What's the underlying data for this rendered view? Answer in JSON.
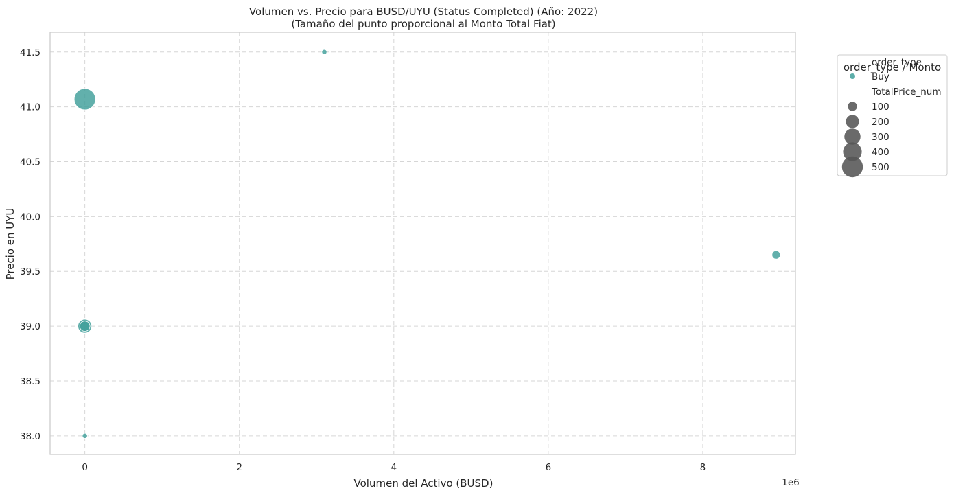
{
  "chart_data": {
    "type": "scatter",
    "title": "Volumen vs. Precio para BUSD/UYU (Status Completed) (Año: 2022)",
    "subtitle": "(Tamaño del punto proporcional al Monto Total Fiat)",
    "xlabel": "Volumen del Activo (BUSD)",
    "ylabel": "Precio en UYU",
    "x_scale_label": "1e6",
    "x_scale_factor": 1000000,
    "xlim": [
      -0.45,
      9.2
    ],
    "ylim": [
      37.83,
      41.68
    ],
    "x_ticks": [
      0,
      2,
      4,
      6,
      8
    ],
    "x_tick_labels": [
      "0",
      "2",
      "4",
      "6",
      "8"
    ],
    "y_ticks": [
      38.0,
      38.5,
      39.0,
      39.5,
      40.0,
      40.5,
      41.0,
      41.5
    ],
    "y_tick_labels": [
      "38.0",
      "38.5",
      "39.0",
      "39.5",
      "40.0",
      "40.5",
      "41.0",
      "41.5"
    ],
    "grid": true,
    "size_range": {
      "min_value": 20,
      "max_value": 520,
      "min_radius": 3.0,
      "max_radius": 15.5
    },
    "series": [
      {
        "name": "Buy",
        "color": "#3f9f9a",
        "points": [
          {
            "x": 3.1,
            "y": 41.5,
            "size": 30
          },
          {
            "x": 0.0,
            "y": 41.07,
            "size": 520
          },
          {
            "x": 0.0,
            "y": 39.0,
            "size": 220
          },
          {
            "x": 0.0,
            "y": 39.0,
            "size": 120
          },
          {
            "x": 8.95,
            "y": 39.65,
            "size": 80
          },
          {
            "x": 0.0,
            "y": 38.0,
            "size": 30
          }
        ]
      }
    ],
    "legend": {
      "placement": "outside upper right",
      "title": "order_type / Monto",
      "hue_title": "order_type",
      "hue_entries": [
        {
          "label": "Buy",
          "color": "#3f9f9a"
        }
      ],
      "size_title": "TotalPrice_num",
      "size_color": "#555555",
      "size_entries": [
        {
          "label": "100",
          "size": 100
        },
        {
          "label": "200",
          "size": 200
        },
        {
          "label": "300",
          "size": 300
        },
        {
          "label": "400",
          "size": 400
        },
        {
          "label": "500",
          "size": 500
        }
      ]
    }
  }
}
